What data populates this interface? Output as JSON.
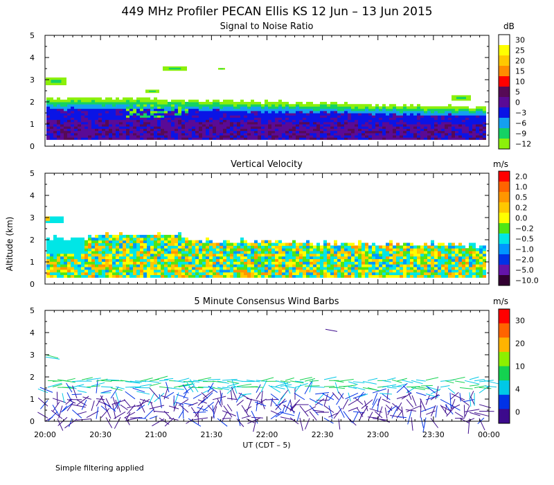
{
  "figure": {
    "title": "449 MHz Profiler PECAN Ellis KS 12 Jun – 13 Jun 2015",
    "ylabel": "Altitude (km)",
    "xlabel": "UT  (CDT – 5)",
    "footnote": "Simple filtering applied"
  },
  "chart_data": [
    {
      "type": "heatmap",
      "title": "Signal to Noise Ratio",
      "colorbar_unit": "dB",
      "colorbar_ticks": [
        "30",
        "25",
        "20",
        "15",
        "10",
        "5",
        "0",
        "−3",
        "−6",
        "−9",
        "−12"
      ],
      "colorbar_colors": [
        "#ffffff",
        "#ffff00",
        "#ffc800",
        "#ff8c00",
        "#ff0000",
        "#560a56",
        "#5a0a96",
        "#0a14e6",
        "#14a0f0",
        "#14d264",
        "#8cf00a"
      ],
      "x_ticks": [
        "20:00",
        "20:30",
        "21:00",
        "21:30",
        "22:00",
        "22:30",
        "23:00",
        "23:30",
        "00:00"
      ],
      "y_ticks": [
        "0",
        "1",
        "2",
        "3",
        "4",
        "5"
      ],
      "ylim": [
        0,
        5
      ]
    },
    {
      "type": "heatmap",
      "title": "Vertical Velocity",
      "colorbar_unit": "m/s",
      "colorbar_ticks": [
        "2.0",
        "1.0",
        "0.5",
        "0.2",
        "0.0",
        "−0.2",
        "−0.5",
        "−1.0",
        "−2.0",
        "−5.0",
        "−10.0"
      ],
      "colorbar_colors": [
        "#ff0000",
        "#ff6400",
        "#ff9600",
        "#ffc800",
        "#ffff00",
        "#50e614",
        "#00e6e6",
        "#0096ff",
        "#0032e6",
        "#6414aa",
        "#320032"
      ],
      "y_ticks": [
        "0",
        "1",
        "2",
        "3",
        "4",
        "5"
      ],
      "ylim": [
        0,
        5
      ]
    },
    {
      "type": "scatter",
      "title": "5 Minute Consensus Wind Barbs",
      "colorbar_unit": "m/s",
      "colorbar_ticks": [
        "30",
        "20",
        "10",
        "4",
        "0"
      ],
      "colorbar_colors": [
        "#ff0000",
        "#ff6400",
        "#ffb400",
        "#8cf000",
        "#14d250",
        "#00c8e6",
        "#0032e6",
        "#3c0a8c"
      ],
      "y_ticks": [
        "0",
        "1",
        "2",
        "3",
        "4",
        "5"
      ],
      "ylim": [
        0,
        5
      ]
    }
  ]
}
